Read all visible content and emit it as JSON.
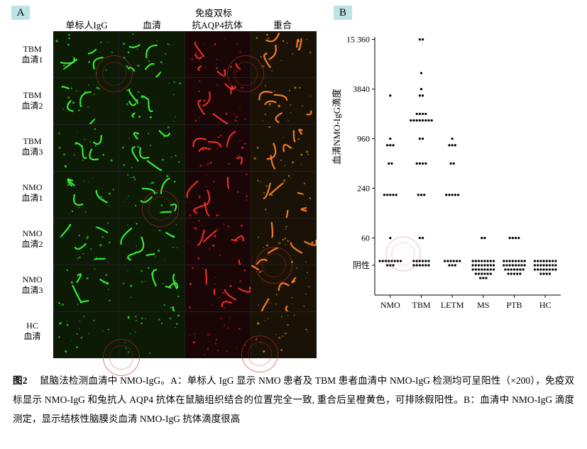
{
  "figure_label": "图2",
  "caption_text": "鼠脑法检测血清中 NMO-IgG。A：单标人 IgG 显示 NMO 患者及 TBM 患者血清中 NMO-IgG 检测均可呈阳性（×200），免疫双标显示 NMO-IgG 和兔抗人 AQP4 抗体在鼠脑组织结合的位置完全一致, 重合后呈橙黄色，可排除假阳性。B：血清中 NMO-IgG 滴度测定，显示结核性脑膜炎血清 NMO-IgG 抗体滴度很高",
  "panelA": {
    "label": "A",
    "super_header": "免疫双标",
    "col_headers": [
      "单标人IgG",
      "血清",
      "抗AQP4抗体",
      "重合"
    ],
    "row_labels": [
      [
        "TBM",
        "血清1"
      ],
      [
        "TBM",
        "血清2"
      ],
      [
        "TBM",
        "血清3"
      ],
      [
        "NMO",
        "血清1"
      ],
      [
        "NMO",
        "血清2"
      ],
      [
        "NMO",
        "血清3"
      ],
      [
        "HC",
        "血清"
      ]
    ],
    "cell_bg": {
      "green": "#0c1a06",
      "red": "#1a0606",
      "merge": "#1a1206"
    },
    "stroke": {
      "green": "#3cff3c",
      "red": "#ff3030",
      "yellow": "#ffb020"
    },
    "channel_per_col": [
      "green",
      "green",
      "red",
      "merge"
    ],
    "watermark_color": "rgba(200,40,40,0.6)"
  },
  "panelB": {
    "label": "B",
    "type": "dot-strip-plot",
    "y_axis_title": "血清NMO-IgG滴度",
    "y_scale": "log",
    "y_ticks": [
      60,
      240,
      960,
      3840,
      15360
    ],
    "y_tick_labels": [
      "60",
      "240",
      "960",
      "3840",
      "15 360"
    ],
    "negative_row_label": "阴性",
    "categories": [
      "NMO",
      "TBM",
      "LETM",
      "MS",
      "PTB",
      "HC"
    ],
    "neg_y": 30,
    "point_color": "#000000",
    "point_radius": 1.6,
    "axis_color": "#000000",
    "series": {
      "NMO": {
        "pos": [
          {
            "v": 60,
            "n": 1
          },
          {
            "v": 200,
            "n": 5
          },
          {
            "v": 480,
            "n": 2
          },
          {
            "v": 800,
            "n": 3
          },
          {
            "v": 960,
            "n": 1
          },
          {
            "v": 3200,
            "n": 1
          }
        ],
        "neg_rows": [
          8,
          3
        ]
      },
      "TBM": {
        "pos": [
          {
            "v": 60,
            "n": 2
          },
          {
            "v": 200,
            "n": 3
          },
          {
            "v": 480,
            "n": 4
          },
          {
            "v": 960,
            "n": 2
          },
          {
            "v": 1600,
            "n": 8
          },
          {
            "v": 1920,
            "n": 4
          },
          {
            "v": 3200,
            "n": 2
          },
          {
            "v": 3840,
            "n": 1
          },
          {
            "v": 6000,
            "n": 1
          },
          {
            "v": 15360,
            "n": 2
          }
        ],
        "neg_rows": [
          6,
          6
        ]
      },
      "LETM": {
        "pos": [
          {
            "v": 200,
            "n": 5
          },
          {
            "v": 480,
            "n": 2
          },
          {
            "v": 800,
            "n": 3
          },
          {
            "v": 960,
            "n": 1
          }
        ],
        "neg_rows": [
          6,
          3
        ]
      },
      "MS": {
        "pos": [
          {
            "v": 60,
            "n": 2
          }
        ],
        "neg_rows": [
          8,
          8,
          8,
          6,
          3
        ]
      },
      "PTB": {
        "pos": [
          {
            "v": 60,
            "n": 4
          }
        ],
        "neg_rows": [
          8,
          8,
          7,
          5
        ]
      },
      "HC": {
        "pos": [],
        "neg_rows": [
          8,
          8,
          8,
          4
        ]
      }
    }
  }
}
